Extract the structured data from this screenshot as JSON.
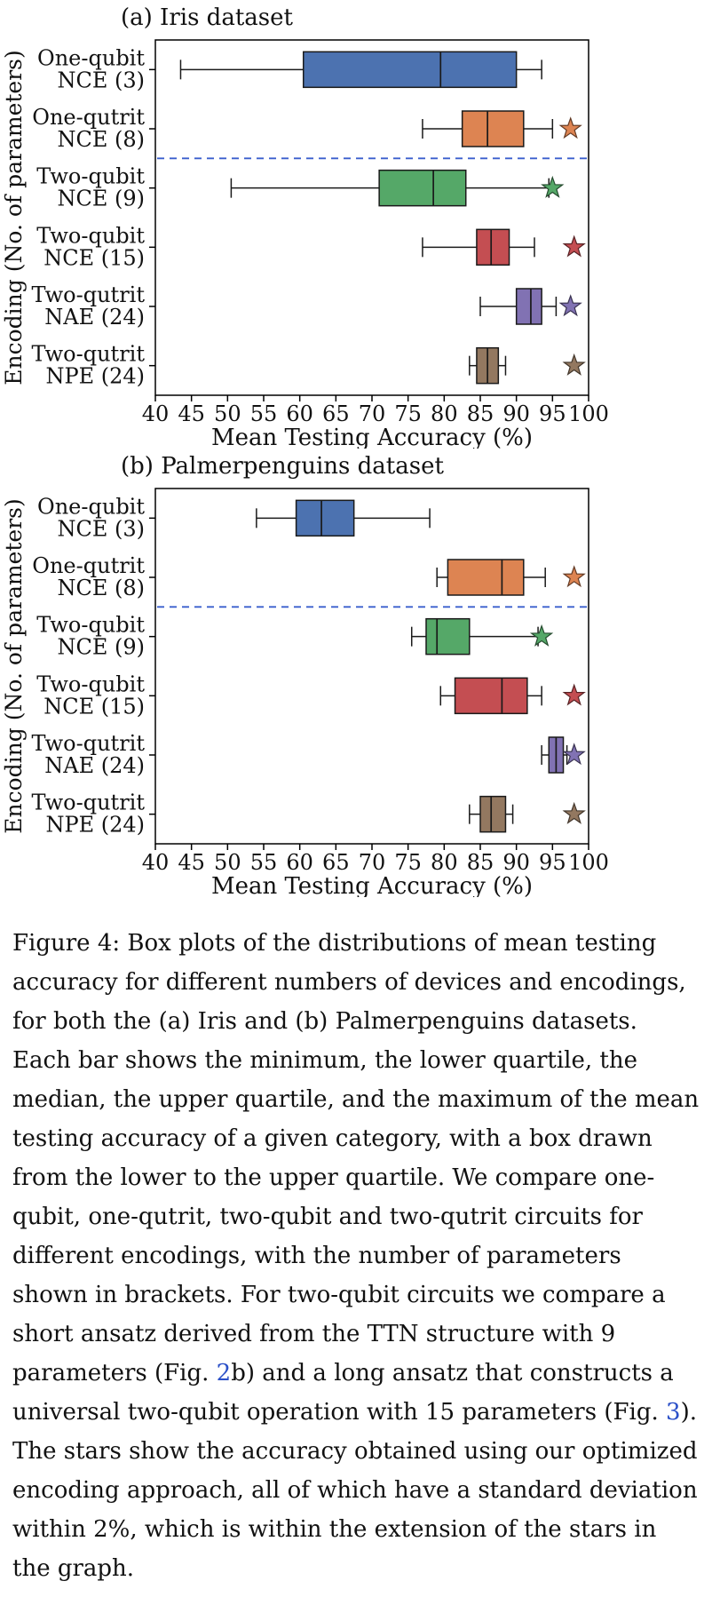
{
  "page": {
    "background": "#ffffff"
  },
  "chart_data": [
    {
      "type": "box",
      "orientation": "horizontal",
      "title": "(a) Iris dataset",
      "xlabel": "Mean Testing Accuracy (%)",
      "ylabel": "Encoding (No. of parameters)",
      "xlim": [
        40,
        100
      ],
      "xticks": [
        40,
        45,
        50,
        55,
        60,
        65,
        70,
        75,
        80,
        85,
        90,
        95,
        100
      ],
      "grid": false,
      "separator": {
        "after_row": 2,
        "style": "dashed",
        "color": "#3A5FCD"
      },
      "rows": [
        {
          "label": [
            "One-qubit",
            "NCE (3)"
          ],
          "color": "#4C72B0",
          "whisker_low": 43.5,
          "q1": 60.5,
          "median": 79.5,
          "q3": 90.0,
          "whisker_high": 93.5,
          "star": null
        },
        {
          "label": [
            "One-qutrit",
            "NCE (8)"
          ],
          "color": "#DD8452",
          "whisker_low": 77.0,
          "q1": 82.5,
          "median": 86.0,
          "q3": 91.0,
          "whisker_high": 95.0,
          "star": 97.5
        },
        {
          "label": [
            "Two-qubit",
            "NCE (9)"
          ],
          "color": "#55A868",
          "whisker_low": 50.5,
          "q1": 71.0,
          "median": 78.5,
          "q3": 83.0,
          "whisker_high": 94.5,
          "star": 95.0
        },
        {
          "label": [
            "Two-qubit",
            "NCE (15)"
          ],
          "color": "#C44E52",
          "whisker_low": 77.0,
          "q1": 84.5,
          "median": 86.5,
          "q3": 89.0,
          "whisker_high": 92.5,
          "star": 98.0
        },
        {
          "label": [
            "Two-qutrit",
            "NAE (24)"
          ],
          "color": "#8172B3",
          "whisker_low": 85.0,
          "q1": 90.0,
          "median": 92.0,
          "q3": 93.5,
          "whisker_high": 95.5,
          "star": 97.5
        },
        {
          "label": [
            "Two-qutrit",
            "NPE (24)"
          ],
          "color": "#937860",
          "whisker_low": 83.5,
          "q1": 84.5,
          "median": 86.0,
          "q3": 87.5,
          "whisker_high": 88.5,
          "star": 98.0
        }
      ]
    },
    {
      "type": "box",
      "orientation": "horizontal",
      "title": "(b) Palmerpenguins dataset",
      "xlabel": "Mean Testing Accuracy (%)",
      "ylabel": "Encoding (No. of parameters)",
      "xlim": [
        40,
        100
      ],
      "xticks": [
        40,
        45,
        50,
        55,
        60,
        65,
        70,
        75,
        80,
        85,
        90,
        95,
        100
      ],
      "grid": false,
      "separator": {
        "after_row": 2,
        "style": "dashed",
        "color": "#3A5FCD"
      },
      "rows": [
        {
          "label": [
            "One-qubit",
            "NCE (3)"
          ],
          "color": "#4C72B0",
          "whisker_low": 54.0,
          "q1": 59.5,
          "median": 63.0,
          "q3": 67.5,
          "whisker_high": 78.0,
          "star": null
        },
        {
          "label": [
            "One-qutrit",
            "NCE (8)"
          ],
          "color": "#DD8452",
          "whisker_low": 79.0,
          "q1": 80.5,
          "median": 88.0,
          "q3": 91.0,
          "whisker_high": 94.0,
          "star": 98.0
        },
        {
          "label": [
            "Two-qubit",
            "NCE (9)"
          ],
          "color": "#55A868",
          "whisker_low": 75.5,
          "q1": 77.5,
          "median": 79.0,
          "q3": 83.5,
          "whisker_high": 93.0,
          "star": 93.5
        },
        {
          "label": [
            "Two-qubit",
            "NCE (15)"
          ],
          "color": "#C44E52",
          "whisker_low": 79.5,
          "q1": 81.5,
          "median": 88.0,
          "q3": 91.5,
          "whisker_high": 93.5,
          "star": 98.0
        },
        {
          "label": [
            "Two-qutrit",
            "NAE (24)"
          ],
          "color": "#8172B3",
          "whisker_low": 93.5,
          "q1": 94.5,
          "median": 95.5,
          "q3": 96.5,
          "whisker_high": 97.0,
          "star": 98.0
        },
        {
          "label": [
            "Two-qutrit",
            "NPE (24)"
          ],
          "color": "#937860",
          "whisker_low": 83.5,
          "q1": 85.0,
          "median": 86.5,
          "q3": 88.5,
          "whisker_high": 89.5,
          "star": 98.0
        }
      ]
    }
  ],
  "figure": {
    "caption": {
      "link_color": "#2B50C8",
      "segments": [
        {
          "text": "Figure 4: Box plots of the distributions of mean testing accuracy for different numbers of devices and encodings, for both the (a) Iris and (b) Palmerpenguins datasets. Each bar shows the minimum, the lower quartile, the median, the upper quartile, and the maximum of the mean testing accuracy of a given category, with a box drawn from the lower to the upper quartile. We compare one-qubit, one-qutrit, two-qubit and two-qutrit circuits for different encodings, with the number of parameters shown in brackets. For two-qubit circuits we compare a short ansatz derived from the TTN structure with 9 parameters (Fig. ",
          "link": false
        },
        {
          "text": "2",
          "link": true
        },
        {
          "text": "b) and a long ansatz that constructs a universal two-qubit operation with 15 parameters (Fig. ",
          "link": false
        },
        {
          "text": "3",
          "link": true
        },
        {
          "text": "). The stars show the accuracy obtained using our optimized encoding approach, all of which have a standard deviation within 2%, which is within the extension of the stars in the graph.",
          "link": false
        }
      ]
    }
  }
}
